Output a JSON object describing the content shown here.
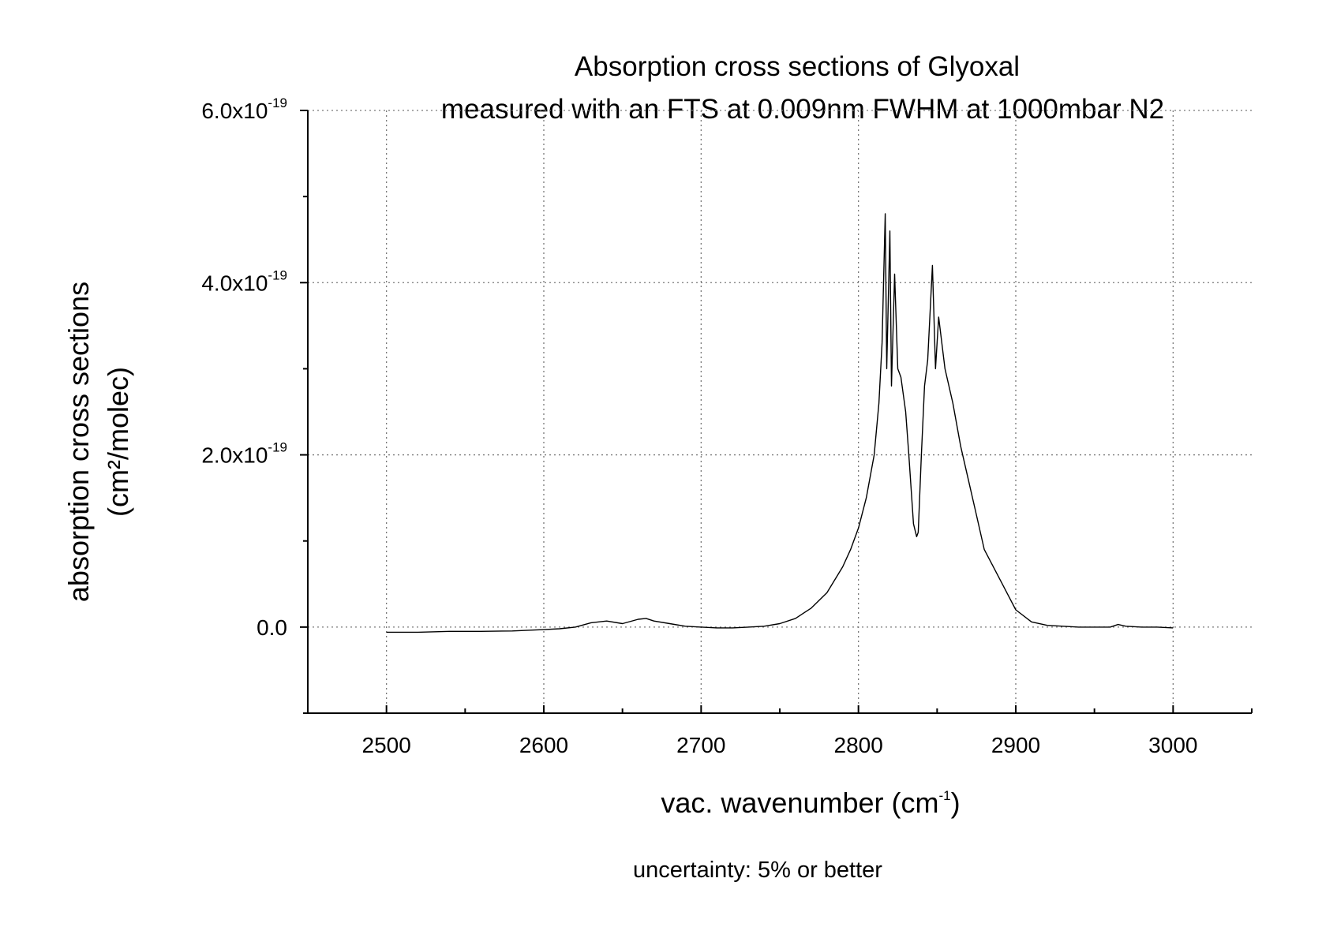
{
  "chart_data": {
    "type": "line",
    "title_lines": [
      "Absorption cross sections of Glyoxal",
      "measured with an FTS at 0.009nm FWHM at 1000mbar N2"
    ],
    "xlabel": {
      "text": "vac. wavenumber (cm",
      "sup": "-1",
      "suffix": ")"
    },
    "ylabel_lines": [
      "absorption cross sections",
      "(cm²/molec)"
    ],
    "note": "uncertainty: 5% or better",
    "xlim": [
      2450,
      3050
    ],
    "ylim": [
      -1e-19,
      6e-19
    ],
    "x_ticks": [
      {
        "value": 2500,
        "label": "2500"
      },
      {
        "value": 2600,
        "label": "2600"
      },
      {
        "value": 2700,
        "label": "2700"
      },
      {
        "value": 2800,
        "label": "2800"
      },
      {
        "value": 2900,
        "label": "2900"
      },
      {
        "value": 3000,
        "label": "3000"
      }
    ],
    "y_ticks": [
      {
        "value": 0,
        "label": "0.0",
        "sup": ""
      },
      {
        "value": 2e-19,
        "label": "2.0x10",
        "sup": "-19"
      },
      {
        "value": 4e-19,
        "label": "4.0x10",
        "sup": "-19"
      },
      {
        "value": 6e-19,
        "label": "6.0x10",
        "sup": "-19"
      }
    ],
    "grid": true,
    "series": [
      {
        "color": "#000000",
        "points": [
          [
            2500,
            -6e-21
          ],
          [
            2520,
            -6e-21
          ],
          [
            2540,
            -5e-21
          ],
          [
            2560,
            -5e-21
          ],
          [
            2580,
            -4.5e-21
          ],
          [
            2600,
            -3e-21
          ],
          [
            2610,
            -2e-21
          ],
          [
            2620,
            0.0
          ],
          [
            2630,
            5e-21
          ],
          [
            2640,
            7e-21
          ],
          [
            2650,
            4e-21
          ],
          [
            2660,
            9e-21
          ],
          [
            2665,
            1e-20
          ],
          [
            2670,
            7e-21
          ],
          [
            2680,
            4e-21
          ],
          [
            2690,
            1e-21
          ],
          [
            2700,
            0.0
          ],
          [
            2710,
            -1e-21
          ],
          [
            2720,
            -1e-21
          ],
          [
            2730,
            0.0
          ],
          [
            2740,
            1e-21
          ],
          [
            2750,
            4e-21
          ],
          [
            2760,
            1e-20
          ],
          [
            2770,
            2.2e-20
          ],
          [
            2780,
            4e-20
          ],
          [
            2790,
            7e-20
          ],
          [
            2795,
            9e-20
          ],
          [
            2800,
            1.15e-19
          ],
          [
            2805,
            1.5e-19
          ],
          [
            2810,
            2e-19
          ],
          [
            2813,
            2.6e-19
          ],
          [
            2815,
            3.3e-19
          ],
          [
            2817,
            4.8e-19
          ],
          [
            2818,
            3e-19
          ],
          [
            2820,
            4.6e-19
          ],
          [
            2821,
            2.8e-19
          ],
          [
            2823,
            4.1e-19
          ],
          [
            2825,
            3e-19
          ],
          [
            2827,
            2.9e-19
          ],
          [
            2830,
            2.5e-19
          ],
          [
            2832,
            2e-19
          ],
          [
            2835,
            1.2e-19
          ],
          [
            2837,
            1.05e-19
          ],
          [
            2838,
            1.1e-19
          ],
          [
            2840,
            2e-19
          ],
          [
            2842,
            2.8e-19
          ],
          [
            2844,
            3.1e-19
          ],
          [
            2847,
            4.2e-19
          ],
          [
            2849,
            3e-19
          ],
          [
            2851,
            3.6e-19
          ],
          [
            2855,
            3e-19
          ],
          [
            2860,
            2.6e-19
          ],
          [
            2865,
            2.1e-19
          ],
          [
            2870,
            1.7e-19
          ],
          [
            2875,
            1.3e-19
          ],
          [
            2880,
            9e-20
          ],
          [
            2890,
            5.5e-20
          ],
          [
            2900,
            2e-20
          ],
          [
            2910,
            6e-21
          ],
          [
            2920,
            2e-21
          ],
          [
            2930,
            1e-21
          ],
          [
            2940,
            0.0
          ],
          [
            2950,
            0.0
          ],
          [
            2960,
            0.0
          ],
          [
            2965,
            3e-21
          ],
          [
            2970,
            1e-21
          ],
          [
            2980,
            0.0
          ],
          [
            2990,
            0.0
          ],
          [
            3000,
            -1e-21
          ]
        ]
      }
    ]
  }
}
